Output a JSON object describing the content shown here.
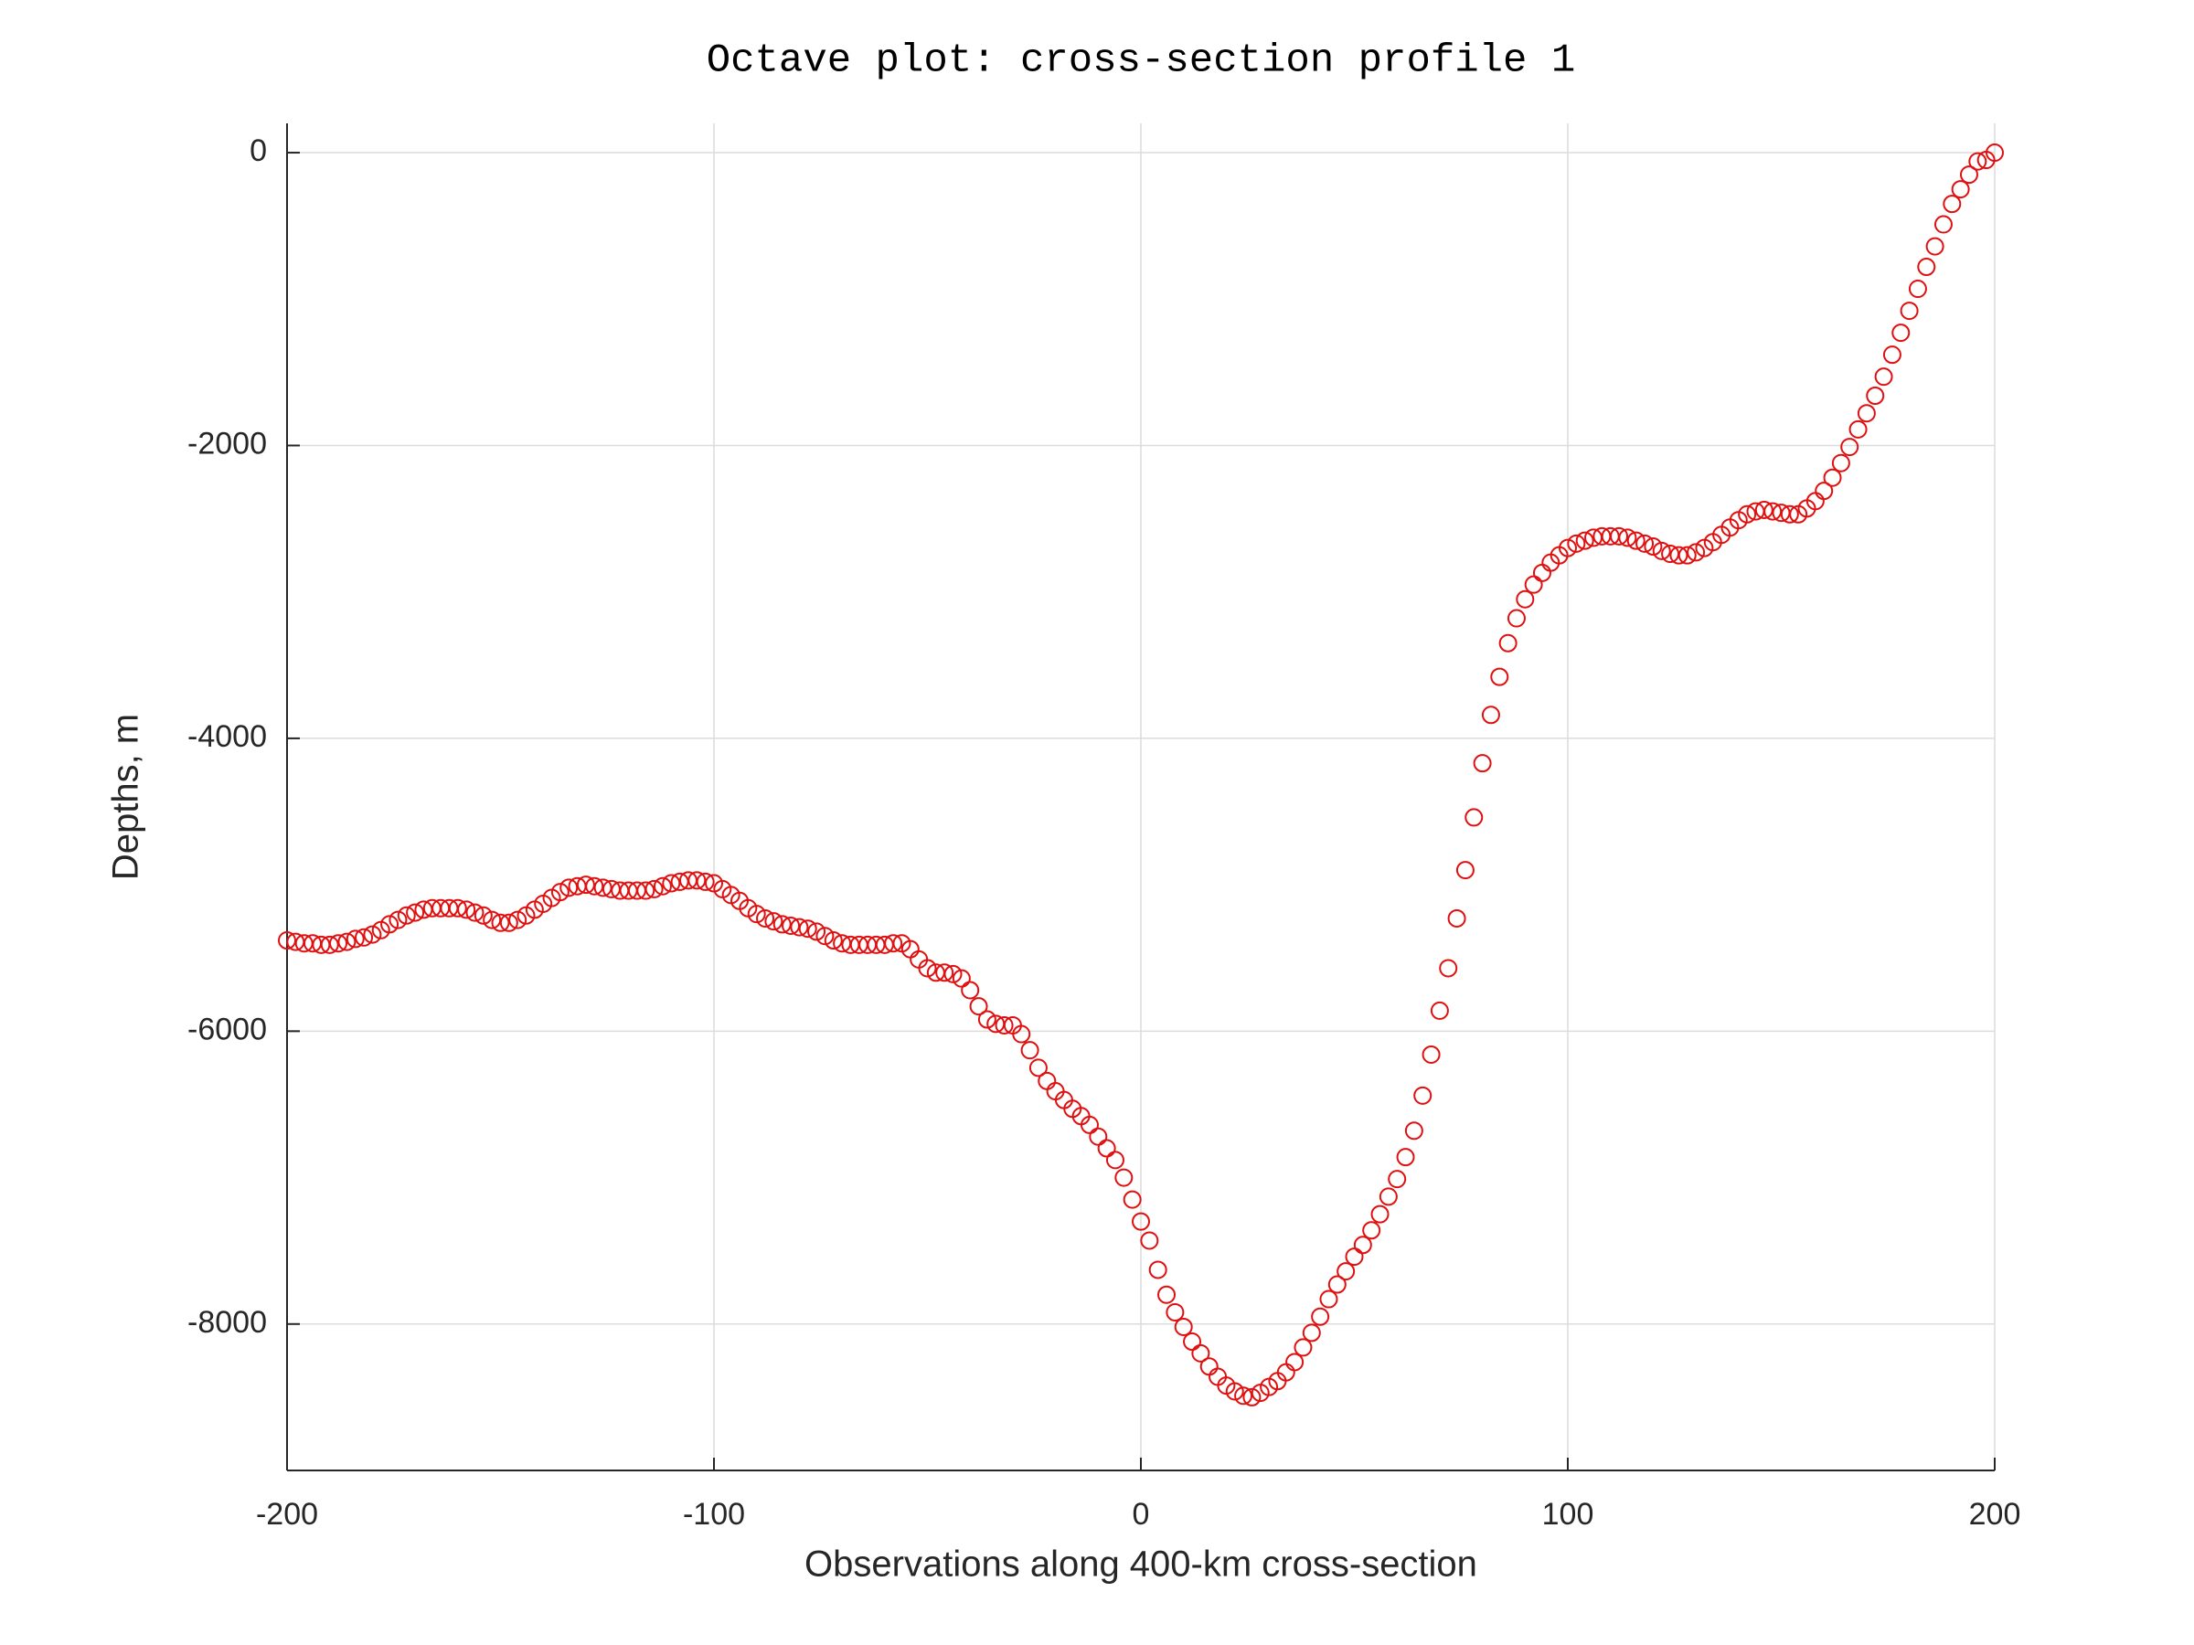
{
  "chart_data": {
    "type": "scatter",
    "title": "Octave plot: cross-section profile 1",
    "xlabel": "Observations along 400-km cross-section",
    "ylabel": "Depths, m",
    "color": "#e01010",
    "grid": true,
    "xlim": [
      -200,
      200
    ],
    "ylim": [
      -9000,
      200
    ],
    "xticks": [
      -200,
      -100,
      0,
      100,
      200
    ],
    "yticks": [
      -8000,
      -6000,
      -4000,
      -2000,
      0
    ],
    "x": [
      -200,
      -198,
      -196,
      -194,
      -192,
      -190,
      -188,
      -186,
      -184,
      -182,
      -180,
      -178,
      -176,
      -174,
      -172,
      -170,
      -168,
      -166,
      -164,
      -162,
      -160,
      -158,
      -156,
      -154,
      -152,
      -150,
      -148,
      -146,
      -144,
      -142,
      -140,
      -138,
      -136,
      -134,
      -132,
      -130,
      -128,
      -126,
      -124,
      -122,
      -120,
      -118,
      -116,
      -114,
      -112,
      -110,
      -108,
      -106,
      -104,
      -102,
      -100,
      -98,
      -96,
      -94,
      -92,
      -90,
      -88,
      -86,
      -84,
      -82,
      -80,
      -78,
      -76,
      -74,
      -72,
      -70,
      -68,
      -66,
      -64,
      -62,
      -60,
      -58,
      -56,
      -54,
      -52,
      -50,
      -48,
      -46,
      -44,
      -42,
      -40,
      -38,
      -36,
      -34,
      -32,
      -30,
      -28,
      -26,
      -24,
      -22,
      -20,
      -18,
      -16,
      -14,
      -12,
      -10,
      -8,
      -6,
      -4,
      -2,
      0,
      2,
      4,
      6,
      8,
      10,
      12,
      14,
      16,
      18,
      20,
      22,
      24,
      26,
      28,
      30,
      32,
      34,
      36,
      38,
      40,
      42,
      44,
      46,
      48,
      50,
      52,
      54,
      56,
      58,
      60,
      62,
      64,
      66,
      68,
      70,
      72,
      74,
      76,
      78,
      80,
      82,
      84,
      86,
      88,
      90,
      92,
      94,
      96,
      98,
      100,
      102,
      104,
      106,
      108,
      110,
      112,
      114,
      116,
      118,
      120,
      122,
      124,
      126,
      128,
      130,
      132,
      134,
      136,
      138,
      140,
      142,
      144,
      146,
      148,
      150,
      152,
      154,
      156,
      158,
      160,
      162,
      164,
      166,
      168,
      170,
      172,
      174,
      176,
      178,
      180,
      182,
      184,
      186,
      188,
      190,
      192,
      194,
      196,
      198,
      200
    ],
    "values": [
      -5380,
      -5390,
      -5400,
      -5400,
      -5410,
      -5410,
      -5400,
      -5390,
      -5370,
      -5360,
      -5340,
      -5310,
      -5270,
      -5240,
      -5210,
      -5190,
      -5170,
      -5160,
      -5160,
      -5160,
      -5160,
      -5170,
      -5190,
      -5210,
      -5240,
      -5260,
      -5260,
      -5240,
      -5210,
      -5170,
      -5130,
      -5090,
      -5050,
      -5020,
      -5010,
      -5000,
      -5010,
      -5020,
      -5030,
      -5040,
      -5040,
      -5040,
      -5040,
      -5030,
      -5010,
      -4990,
      -4980,
      -4970,
      -4970,
      -4980,
      -4990,
      -5030,
      -5070,
      -5110,
      -5160,
      -5200,
      -5230,
      -5250,
      -5270,
      -5280,
      -5290,
      -5300,
      -5320,
      -5350,
      -5380,
      -5400,
      -5410,
      -5410,
      -5410,
      -5410,
      -5410,
      -5400,
      -5400,
      -5440,
      -5510,
      -5570,
      -5600,
      -5600,
      -5610,
      -5640,
      -5720,
      -5830,
      -5920,
      -5950,
      -5960,
      -5960,
      -6020,
      -6130,
      -6250,
      -6340,
      -6410,
      -6470,
      -6530,
      -6580,
      -6640,
      -6720,
      -6800,
      -6880,
      -7000,
      -7150,
      -7300,
      -7430,
      -7630,
      -7800,
      -7920,
      -8020,
      -8120,
      -8200,
      -8290,
      -8360,
      -8420,
      -8460,
      -8490,
      -8500,
      -8470,
      -8430,
      -8390,
      -8330,
      -8260,
      -8160,
      -8060,
      -7950,
      -7830,
      -7730,
      -7640,
      -7540,
      -7460,
      -7360,
      -7250,
      -7130,
      -7010,
      -6860,
      -6680,
      -6440,
      -6160,
      -5860,
      -5570,
      -5230,
      -4900,
      -4540,
      -4170,
      -3840,
      -3580,
      -3350,
      -3180,
      -3050,
      -2950,
      -2870,
      -2800,
      -2750,
      -2700,
      -2670,
      -2650,
      -2630,
      -2620,
      -2620,
      -2620,
      -2630,
      -2650,
      -2670,
      -2690,
      -2720,
      -2740,
      -2750,
      -2750,
      -2730,
      -2700,
      -2660,
      -2610,
      -2560,
      -2510,
      -2470,
      -2450,
      -2440,
      -2450,
      -2460,
      -2470,
      -2470,
      -2430,
      -2380,
      -2310,
      -2220,
      -2120,
      -2010,
      -1890,
      -1780,
      -1660,
      -1530,
      -1380,
      -1230,
      -1080,
      -930,
      -780,
      -640,
      -490,
      -350,
      -250,
      -150,
      -60,
      -50,
      0
    ]
  }
}
